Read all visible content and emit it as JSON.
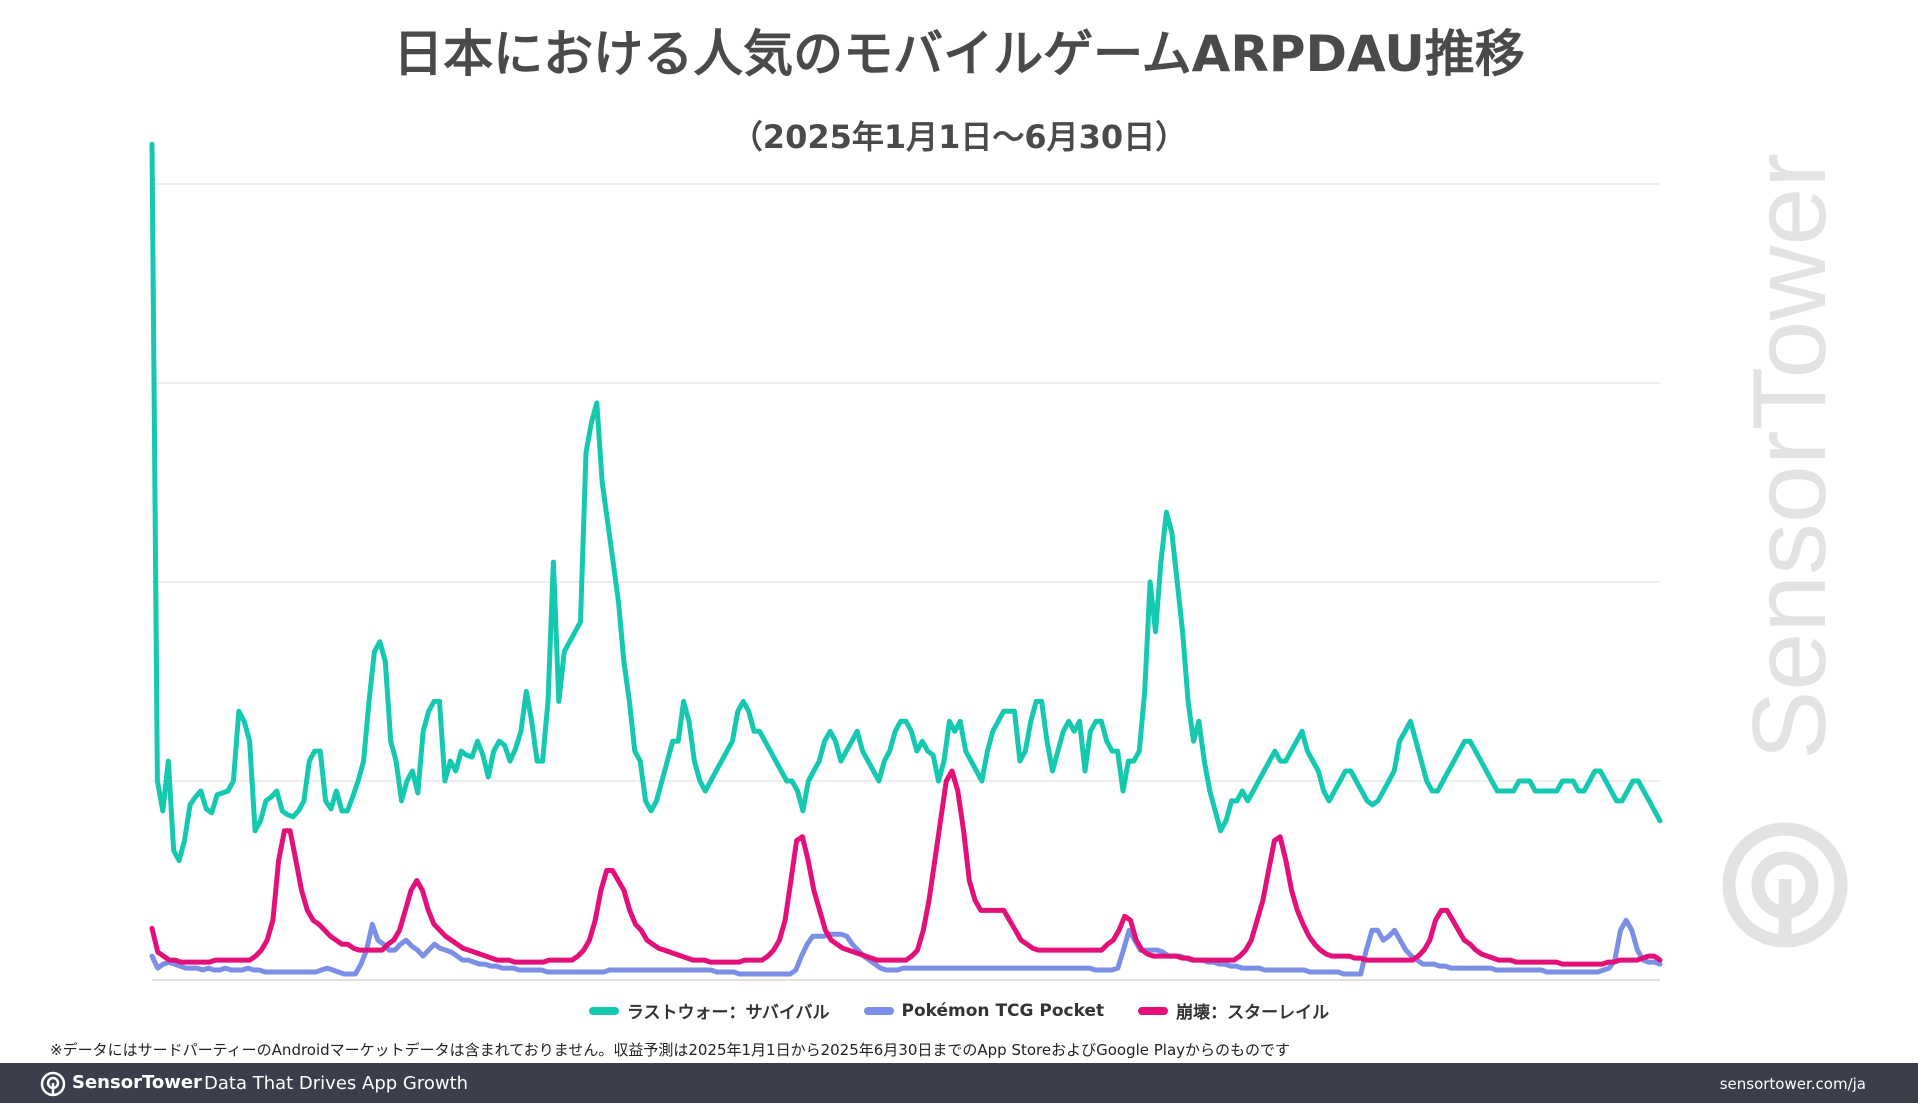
{
  "chart_data": {
    "type": "line",
    "title": "日本における人気のモバイルゲームARPDAU推移",
    "subtitle": "（2025年1月1日〜6月30日）",
    "x_range": [
      "2025-01-01",
      "2025-06-30"
    ],
    "grid": true,
    "legend_position": "bottom",
    "series": [
      {
        "name": "ラストウォー：サバイバル",
        "color": "#14c9b0",
        "values": [
          42,
          10,
          8.5,
          11,
          6.5,
          6,
          7,
          8.8,
          9.2,
          9.5,
          8.6,
          8.4,
          9.3,
          9.4,
          9.5,
          10,
          13.5,
          13,
          12,
          7.5,
          8,
          9,
          9.2,
          9.5,
          8.5,
          8.3,
          8.2,
          8.5,
          9,
          11,
          11.5,
          11.5,
          9,
          8.6,
          9.5,
          8.5,
          8.5,
          9.2,
          10,
          11,
          14,
          16.5,
          17,
          16,
          12,
          11,
          9,
          10,
          10.5,
          9.4,
          12.5,
          13.5,
          14,
          14,
          10,
          11,
          10.5,
          11.5,
          11.3,
          11.2,
          12,
          11.3,
          10.2,
          11.5,
          12,
          11.8,
          11,
          11.6,
          12.5,
          14.5,
          13,
          11,
          11,
          14,
          21,
          14,
          16.5,
          17,
          17.5,
          18,
          26.5,
          28,
          29,
          25,
          23,
          21,
          19,
          16,
          14,
          11.5,
          11,
          9,
          8.5,
          9,
          10,
          11,
          12,
          12,
          14,
          13,
          11,
          10,
          9.5,
          10,
          10.5,
          11,
          11.5,
          12,
          13.5,
          14,
          13.5,
          12.5,
          12.5,
          12,
          11.5,
          11,
          10.5,
          10,
          10,
          9.5,
          8.5,
          10,
          10.5,
          11,
          12,
          12.5,
          12,
          11,
          11.5,
          12,
          12.5,
          11.5,
          11,
          10.5,
          10,
          11,
          11.5,
          12.5,
          13,
          13,
          12.5,
          11.5,
          12,
          11.5,
          11.3,
          10,
          11,
          13,
          12.5,
          13,
          11.5,
          11,
          10.5,
          10,
          11.5,
          12.5,
          13,
          13.5,
          13.5,
          13.5,
          11,
          11.5,
          13,
          14,
          14,
          12,
          10.5,
          11.5,
          12.5,
          13,
          12.5,
          13,
          10.5,
          12.5,
          13,
          13,
          12,
          11.5,
          11.5,
          9.5,
          11,
          11,
          11.5,
          14.5,
          20,
          17.5,
          21,
          23.5,
          22.5,
          20,
          17.5,
          14,
          12,
          13,
          11,
          9.5,
          8.5,
          7.5,
          8,
          9,
          9,
          9.5,
          9,
          9.5,
          10,
          10.5,
          11,
          11.5,
          11,
          11,
          11.5,
          12,
          12.5,
          11.5,
          11,
          10.5,
          9.5,
          9,
          9.5,
          10,
          10.5,
          10.5,
          10,
          9.5,
          9,
          8.8,
          9,
          9.5,
          10,
          10.5,
          12,
          12.5,
          13,
          12,
          11,
          10,
          9.5,
          9.5,
          10,
          10.5,
          11,
          11.5,
          12,
          12,
          11.5,
          11,
          10.5,
          10,
          9.5,
          9.5,
          9.5,
          9.5,
          10,
          10,
          10,
          9.5,
          9.5,
          9.5,
          9.5,
          9.5,
          10,
          10,
          10,
          9.5,
          9.5,
          10,
          10.5,
          10.5,
          10,
          9.5,
          9,
          9,
          9.5,
          10,
          10,
          9.5,
          9,
          8.5,
          8
        ]
      },
      {
        "name": "Pokémon TCG Pocket",
        "color": "#7b8fe6",
        "values": [
          1.2,
          0.6,
          0.8,
          0.9,
          0.8,
          0.7,
          0.6,
          0.6,
          0.6,
          0.5,
          0.6,
          0.5,
          0.5,
          0.6,
          0.5,
          0.5,
          0.5,
          0.6,
          0.5,
          0.5,
          0.4,
          0.4,
          0.4,
          0.4,
          0.4,
          0.4,
          0.4,
          0.4,
          0.4,
          0.4,
          0.5,
          0.6,
          0.5,
          0.4,
          0.3,
          0.3,
          0.3,
          0.8,
          1.5,
          2.8,
          2,
          1.8,
          1.5,
          1.5,
          1.8,
          2,
          1.7,
          1.5,
          1.2,
          1.5,
          1.8,
          1.6,
          1.5,
          1.4,
          1.2,
          1,
          1,
          0.9,
          0.8,
          0.8,
          0.7,
          0.7,
          0.6,
          0.6,
          0.6,
          0.5,
          0.5,
          0.5,
          0.5,
          0.5,
          0.4,
          0.4,
          0.4,
          0.4,
          0.4,
          0.4,
          0.4,
          0.4,
          0.4,
          0.4,
          0.4,
          0.5,
          0.5,
          0.5,
          0.5,
          0.5,
          0.5,
          0.5,
          0.5,
          0.5,
          0.5,
          0.5,
          0.5,
          0.5,
          0.5,
          0.5,
          0.5,
          0.5,
          0.5,
          0.5,
          0.4,
          0.4,
          0.4,
          0.4,
          0.3,
          0.3,
          0.3,
          0.3,
          0.3,
          0.3,
          0.3,
          0.3,
          0.3,
          0.3,
          0.5,
          1.2,
          1.8,
          2.2,
          2.2,
          2.2,
          2.3,
          2.3,
          2.3,
          2.2,
          1.8,
          1.5,
          1.2,
          1,
          0.8,
          0.6,
          0.5,
          0.5,
          0.5,
          0.6,
          0.6,
          0.6,
          0.6,
          0.6,
          0.6,
          0.6,
          0.6,
          0.6,
          0.6,
          0.6,
          0.6,
          0.6,
          0.6,
          0.6,
          0.6,
          0.6,
          0.6,
          0.6,
          0.6,
          0.6,
          0.6,
          0.6,
          0.6,
          0.6,
          0.6,
          0.6,
          0.6,
          0.6,
          0.6,
          0.6,
          0.6,
          0.6,
          0.6,
          0.5,
          0.5,
          0.5,
          0.5,
          0.6,
          1.5,
          2.5,
          2,
          1.5,
          1.5,
          1.5,
          1.5,
          1.4,
          1.2,
          1.2,
          1.2,
          1.1,
          1,
          1,
          1,
          0.9,
          0.9,
          0.8,
          0.8,
          0.7,
          0.7,
          0.6,
          0.6,
          0.6,
          0.6,
          0.5,
          0.5,
          0.5,
          0.5,
          0.5,
          0.5,
          0.5,
          0.5,
          0.4,
          0.4,
          0.4,
          0.4,
          0.4,
          0.4,
          0.3,
          0.3,
          0.3,
          0.3,
          1.5,
          2.5,
          2.5,
          2,
          2.2,
          2.5,
          2,
          1.5,
          1.2,
          1,
          0.8,
          0.8,
          0.8,
          0.7,
          0.7,
          0.6,
          0.6,
          0.6,
          0.6,
          0.6,
          0.6,
          0.6,
          0.6,
          0.5,
          0.5,
          0.5,
          0.5,
          0.5,
          0.5,
          0.5,
          0.5,
          0.5,
          0.4,
          0.4,
          0.4,
          0.4,
          0.4,
          0.4,
          0.4,
          0.4,
          0.4,
          0.4,
          0.5,
          0.6,
          1,
          2.5,
          3,
          2.5,
          1.5,
          1,
          0.9,
          0.9,
          0.8
        ]
      },
      {
        "name": "崩壊：スターレイル",
        "color": "#e3107a",
        "values": [
          2.6,
          1.4,
          1.2,
          1,
          1,
          0.9,
          0.9,
          0.9,
          0.9,
          0.9,
          0.9,
          1,
          1,
          1,
          1,
          1,
          1,
          1,
          1.2,
          1.5,
          2,
          3,
          6,
          7.5,
          7.5,
          6,
          4.5,
          3.5,
          3,
          2.8,
          2.5,
          2.2,
          2,
          1.8,
          1.8,
          1.6,
          1.5,
          1.5,
          1.5,
          1.5,
          1.5,
          1.8,
          2,
          2.5,
          3.5,
          4.5,
          5,
          4.5,
          3.5,
          2.8,
          2.5,
          2.2,
          2,
          1.8,
          1.6,
          1.5,
          1.4,
          1.3,
          1.2,
          1.1,
          1,
          1,
          1,
          0.9,
          0.9,
          0.9,
          0.9,
          0.9,
          0.9,
          1,
          1,
          1,
          1,
          1,
          1.2,
          1.5,
          2,
          3,
          4.5,
          5.5,
          5.5,
          5,
          4.5,
          3.5,
          2.8,
          2.5,
          2,
          1.8,
          1.6,
          1.5,
          1.4,
          1.3,
          1.2,
          1.1,
          1,
          1,
          1,
          0.9,
          0.9,
          0.9,
          0.9,
          0.9,
          0.9,
          1,
          1,
          1,
          1,
          1.2,
          1.5,
          2,
          3,
          5,
          7,
          7.2,
          6,
          4.5,
          3.5,
          2.5,
          2,
          1.8,
          1.6,
          1.5,
          1.4,
          1.3,
          1.2,
          1.1,
          1,
          1,
          1,
          1,
          1,
          1,
          1.2,
          1.5,
          2.5,
          4,
          6,
          8,
          10,
          10.5,
          9.5,
          7.5,
          5,
          4,
          3.5,
          3.5,
          3.5,
          3.5,
          3.5,
          3,
          2.5,
          2,
          1.8,
          1.6,
          1.5,
          1.5,
          1.5,
          1.5,
          1.5,
          1.5,
          1.5,
          1.5,
          1.5,
          1.5,
          1.5,
          1.5,
          1.8,
          2,
          2.5,
          3.2,
          3,
          2,
          1.5,
          1.3,
          1.2,
          1.2,
          1.2,
          1.2,
          1.2,
          1.1,
          1.1,
          1,
          1,
          1,
          1,
          1,
          1,
          1,
          1,
          1.2,
          1.5,
          2,
          3,
          4,
          5.5,
          7,
          7.2,
          6,
          4.5,
          3.5,
          2.8,
          2.2,
          1.8,
          1.5,
          1.3,
          1.2,
          1.2,
          1.2,
          1.2,
          1.1,
          1.1,
          1,
          1,
          1,
          1,
          1,
          1,
          1,
          1,
          1,
          1.2,
          1.5,
          2,
          3,
          3.5,
          3.5,
          3,
          2.5,
          2,
          1.8,
          1.5,
          1.3,
          1.2,
          1.1,
          1,
          1,
          1,
          0.9,
          0.9,
          0.9,
          0.9,
          0.9,
          0.9,
          0.9,
          0.9,
          0.8,
          0.8,
          0.8,
          0.8,
          0.8,
          0.8,
          0.8,
          0.8,
          0.9,
          0.9,
          1,
          1,
          1,
          1,
          1.1,
          1.2,
          1.2,
          1
        ]
      }
    ]
  },
  "footnote": "※データにはサードパーティーのAndroidマーケットデータは含まれておりません。収益予測は2025年1月1日から2025年6月30日までのApp StoreおよびGoogle Playからのものです",
  "watermark": "SensorTower",
  "footer": {
    "brand": "SensorTower",
    "tagline": "Data That Drives App Growth",
    "url": "sensortower.com/ja",
    "background": "#3a3f4b"
  }
}
